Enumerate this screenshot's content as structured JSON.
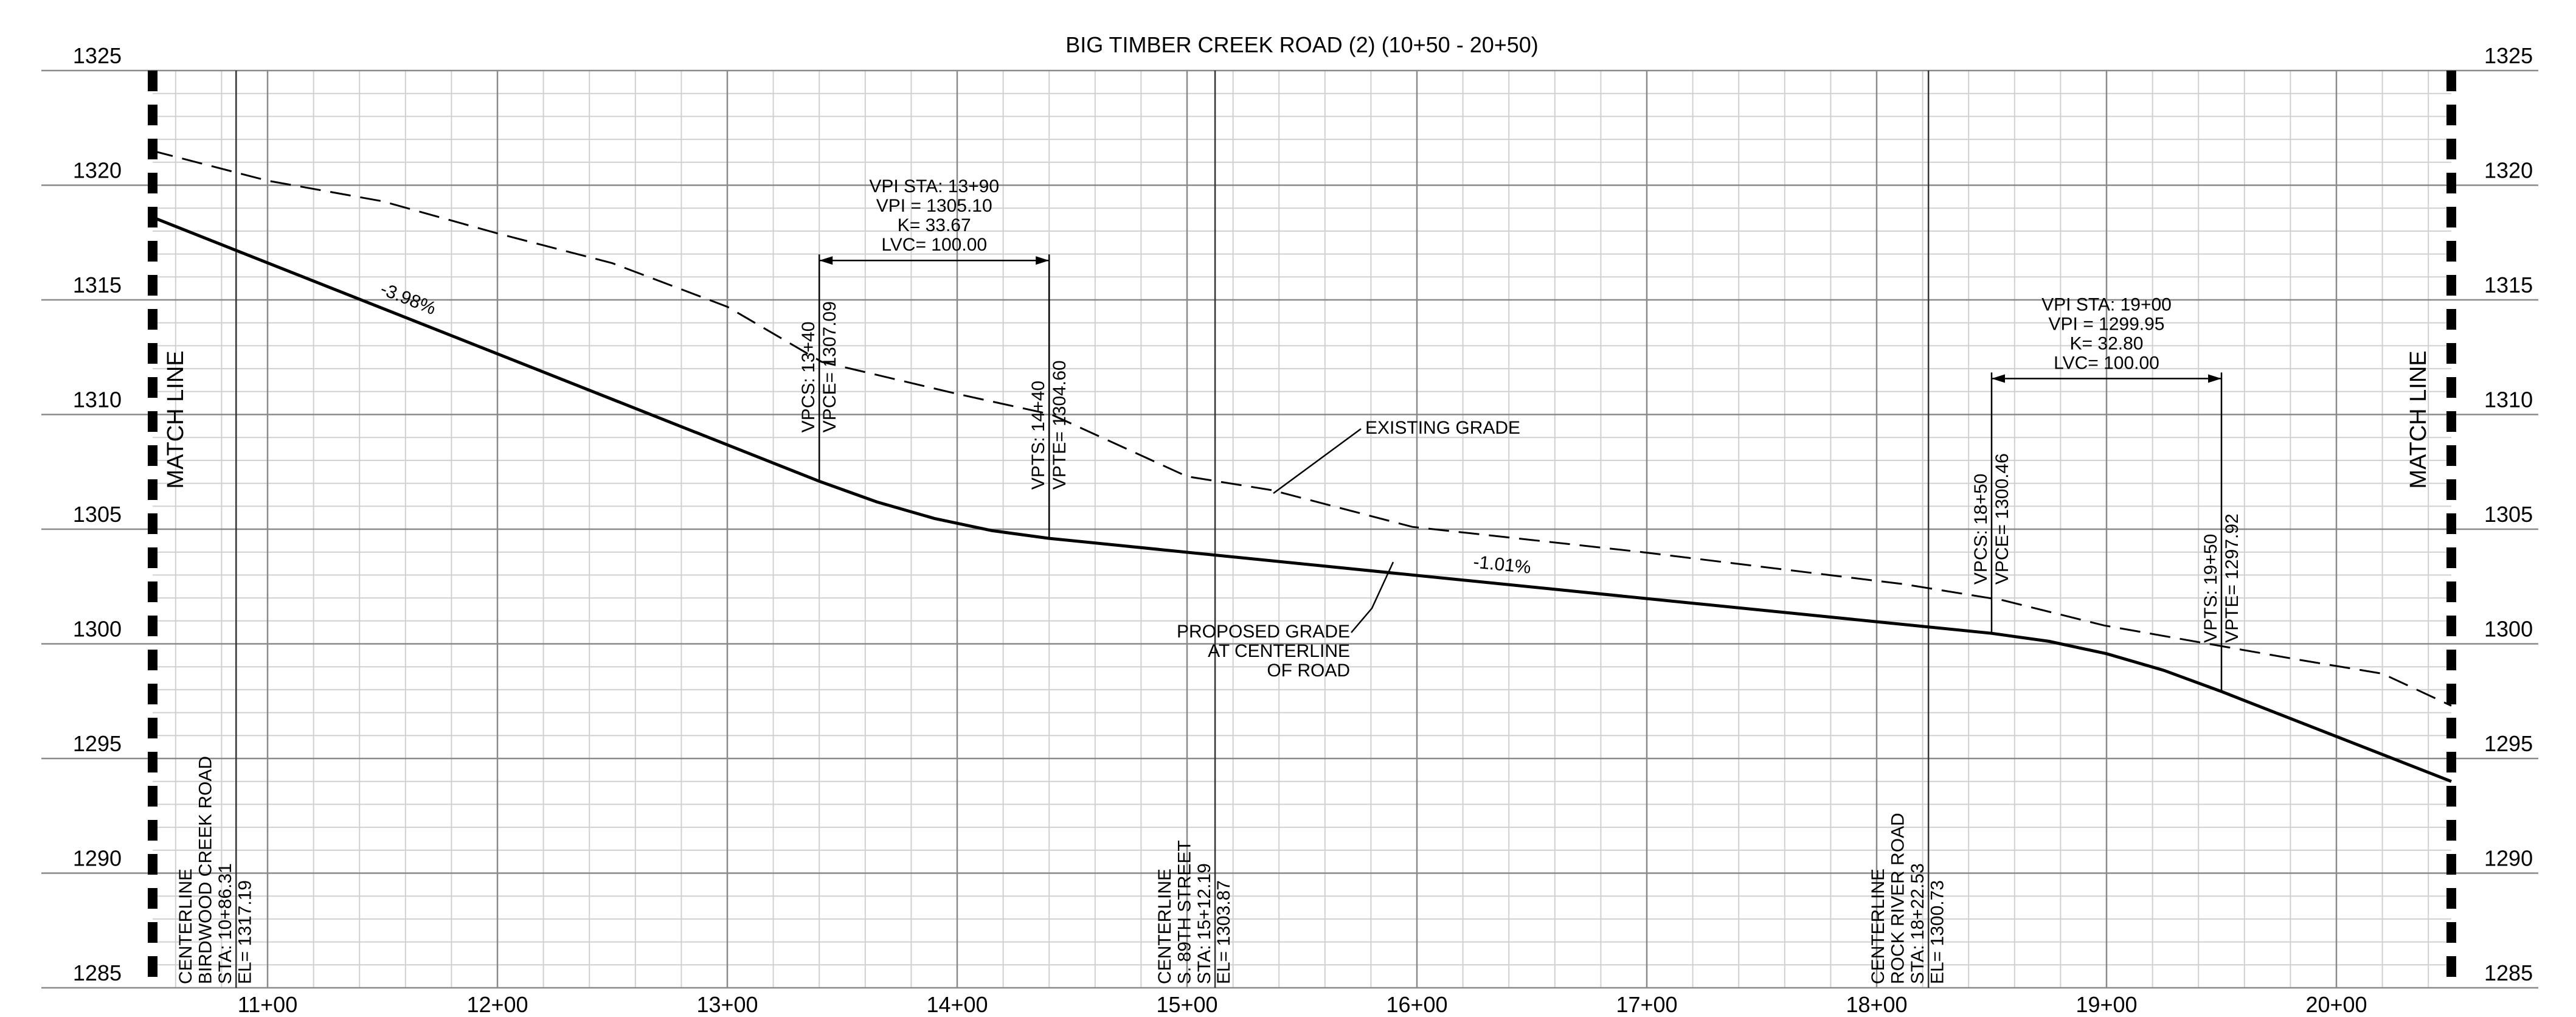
{
  "chart_data": {
    "type": "line",
    "title": "BIG TIMBER CREEK ROAD (2) (10+50 - 20+50)",
    "match_line": "MATCH LINE",
    "xlim": [
      1050,
      2050
    ],
    "ylim": [
      1285,
      1325
    ],
    "yticks": [
      1285,
      1290,
      1295,
      1300,
      1305,
      1310,
      1315,
      1320,
      1325
    ],
    "xticks": [
      {
        "value": 1100,
        "label": "11+00"
      },
      {
        "value": 1200,
        "label": "12+00"
      },
      {
        "value": 1300,
        "label": "13+00"
      },
      {
        "value": 1400,
        "label": "14+00"
      },
      {
        "value": 1500,
        "label": "15+00"
      },
      {
        "value": 1600,
        "label": "16+00"
      },
      {
        "value": 1700,
        "label": "17+00"
      },
      {
        "value": 1800,
        "label": "18+00"
      },
      {
        "value": 1900,
        "label": "19+00"
      },
      {
        "value": 2000,
        "label": "20+00"
      }
    ],
    "grid": true,
    "series": [
      {
        "name": "EXISTING GRADE",
        "color": "#000000",
        "dashed": true,
        "x": [
          1050,
          1100,
          1150,
          1200,
          1250,
          1300,
          1341,
          1400,
          1441,
          1500,
          1537,
          1598,
          1698,
          1812,
          1855,
          1899,
          1984,
          2020,
          2050
        ],
        "values": [
          1321.5,
          1320.2,
          1319.3,
          1317.9,
          1316.6,
          1314.7,
          1312.3,
          1310.9,
          1310.0,
          1307.3,
          1306.7,
          1305.1,
          1304.0,
          1302.6,
          1301.9,
          1300.8,
          1299.3,
          1298.7,
          1297.3
        ]
      },
      {
        "label_lines": [
          "PROPOSED GRADE",
          "AT CENTERLINE",
          "OF ROAD"
        ],
        "color": "#000000",
        "dashed": false,
        "x": [
          1050,
          1340,
          1365,
          1390,
          1415,
          1440,
          1850,
          1875,
          1900,
          1925,
          1950,
          2050
        ],
        "values": [
          1318.6,
          1307.09,
          1306.19,
          1305.47,
          1304.94,
          1304.6,
          1300.46,
          1300.11,
          1299.57,
          1298.84,
          1297.92,
          1294.0
        ]
      }
    ],
    "grade_labels": [
      {
        "value": -3.98,
        "label": "-3.98%"
      },
      {
        "value": -1.01,
        "label": "-1.01%"
      }
    ],
    "vertical_curves": [
      {
        "vpi_station": 1390,
        "vpi_elevation": 1305.1,
        "lines": [
          "VPI STA: 13+90",
          "VPI = 1305.10",
          "K= 33.67",
          "LVC= 100.00"
        ],
        "vpc": {
          "station": 1340,
          "elevation": 1307.09,
          "station_label": "VPCS: 13+40",
          "elevation_label": "VPCE= 1307.09"
        },
        "vpt": {
          "station": 1440,
          "elevation": 1304.6,
          "station_label": "VPTS: 14+40",
          "elevation_label": "VPTE= 1304.60"
        }
      },
      {
        "vpi_station": 1900,
        "vpi_elevation": 1299.95,
        "lines": [
          "VPI STA: 19+00",
          "VPI = 1299.95",
          "K= 32.80",
          "LVC= 100.00"
        ],
        "vpc": {
          "station": 1850,
          "elevation": 1300.46,
          "station_label": "VPCS: 18+50",
          "elevation_label": "VPCE= 1300.46"
        },
        "vpt": {
          "station": 1950,
          "elevation": 1297.92,
          "station_label": "VPTS: 19+50",
          "elevation_label": "VPTE= 1297.92"
        }
      }
    ],
    "crossings": [
      {
        "station": 1086.31,
        "lines": [
          "CENTERLINE",
          "BIRDWOOD CREEK ROAD",
          "STA: 10+86.31",
          "EL= 1317.19"
        ]
      },
      {
        "station": 1512.19,
        "lines": [
          "CENTERLINE",
          "S. 89TH STREET",
          "STA: 15+12.19",
          "EL= 1303.87"
        ]
      },
      {
        "station": 1822.53,
        "lines": [
          "CENTERLINE",
          "ROCK RIVER ROAD",
          "STA: 18+22.53",
          "EL= 1300.73"
        ]
      }
    ]
  }
}
